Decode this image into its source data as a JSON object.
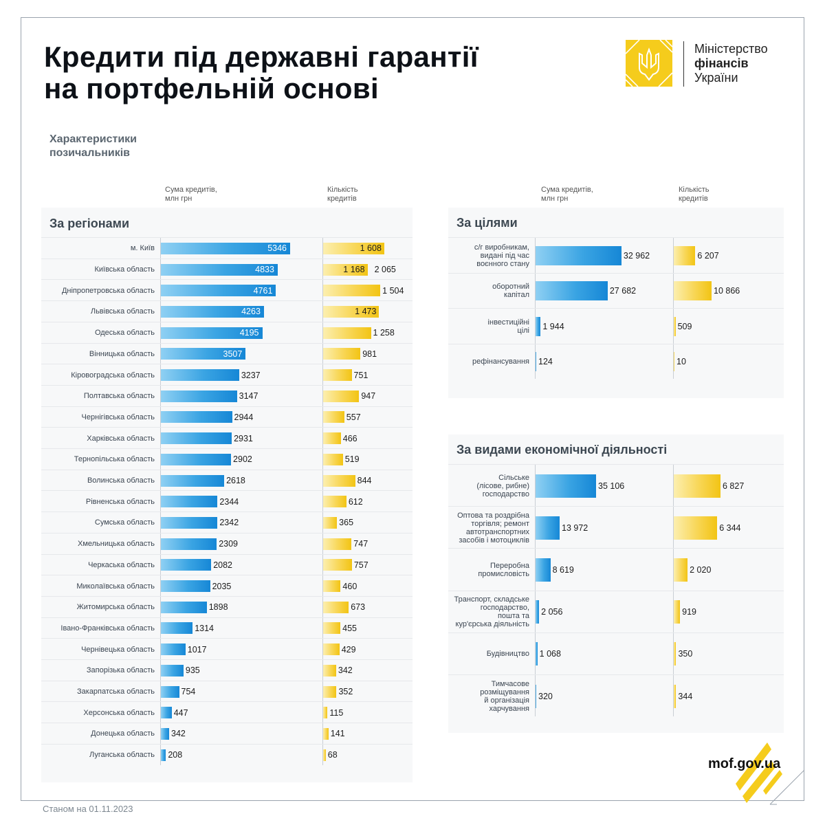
{
  "title": {
    "line1": "Кредити під державні гарантії",
    "line2": "на портфельній основі"
  },
  "org": {
    "line1": "Міністерство",
    "line2": "фінансів",
    "line3": "України"
  },
  "subtitle": {
    "line1": "Характеристики",
    "line2": "позичальників"
  },
  "headers": {
    "sum_line1": "Сума кредитів,",
    "sum_line2": "млн грн",
    "count_line1": "Кількість",
    "count_line2": "кредитів"
  },
  "footer": {
    "site": "mof.gov.ua",
    "date": "Станом на 01.11.2023"
  },
  "colors": {
    "blue": "#1687d6",
    "yellow": "#f2c414",
    "logo": "#f5cc1c"
  },
  "icons": {
    "logo": "trident-emblem-icon"
  },
  "chart_data": [
    {
      "type": "bar",
      "section": "За регіонами",
      "categories": [
        "м. Київ",
        "Київська область",
        "Дніпропетровська область",
        "Львівська область",
        "Одеська область",
        "Вінницька область",
        "Кіровоградська область",
        "Полтавська область",
        "Чернігівська область",
        "Харківська область",
        "Тернопільська область",
        "Волинська область",
        "Рівненська область",
        "Сумська область",
        "Хмельницька область",
        "Черкаська область",
        "Миколаївська область",
        "Житомирська область",
        "Івано-Франківська область",
        "Чернівецька область",
        "Запорізька область",
        "Закарпатська область",
        "Херсонська область",
        "Донецька область",
        "Луганська область"
      ],
      "series": [
        {
          "name": "Сума кредитів, млн грн",
          "values": [
            5346,
            4833,
            4761,
            4263,
            4195,
            3507,
            3237,
            3147,
            2944,
            2931,
            2902,
            2618,
            2344,
            2342,
            2309,
            2082,
            2035,
            1898,
            1314,
            1017,
            935,
            754,
            447,
            342,
            208
          ],
          "labels": [
            "5346",
            "4833",
            "4761",
            "4263",
            "4195",
            "3507",
            "3237",
            "3147",
            "2944",
            "2931",
            "2902",
            "2618",
            "2344",
            "2342",
            "2309",
            "2082",
            "2035",
            "1898",
            "1314",
            "1017",
            "935",
            "754",
            "447",
            "342",
            "208"
          ]
        },
        {
          "name": "Кількість кредитів",
          "values": [
            1608,
            1168,
            1504,
            1473,
            1258,
            981,
            751,
            947,
            557,
            466,
            519,
            844,
            612,
            365,
            747,
            757,
            460,
            673,
            455,
            429,
            342,
            352,
            115,
            141,
            68
          ],
          "labels": [
            "1 608",
            "1 168",
            "1 504",
            "1 473",
            "1 258",
            "981",
            "751",
            "947",
            "557",
            "466",
            "519",
            "844",
            "612",
            "365",
            "747",
            "757",
            "460",
            "673",
            "455",
            "429",
            "342",
            "352",
            "115",
            "141",
            "68"
          ]
        }
      ],
      "extra_label": {
        "row": 1,
        "text": "2 065"
      }
    },
    {
      "type": "bar",
      "section": "За цілями",
      "categories": [
        [
          "с/г виробникам,",
          "видані під час",
          "воєнного стану"
        ],
        [
          "оборотний",
          "капітал"
        ],
        [
          "інвестиційні",
          "цілі"
        ],
        [
          "рефінансування"
        ]
      ],
      "series": [
        {
          "name": "Сума кредитів, млн грн",
          "values": [
            32962,
            27682,
            1944,
            124
          ],
          "labels": [
            "32 962",
            "27 682",
            "1 944",
            "124"
          ]
        },
        {
          "name": "Кількість кредитів",
          "values": [
            6207,
            10866,
            509,
            10
          ],
          "labels": [
            "6 207",
            "10 866",
            "509",
            "10"
          ]
        }
      ]
    },
    {
      "type": "bar",
      "section": "За видами економічної діяльності",
      "categories": [
        [
          "Сільське",
          "(лісове, рибне)",
          "господарство"
        ],
        [
          "Оптова та роздрібна",
          "торгівля; ремонт",
          "автотранспортних",
          "засобів і мотоциклів"
        ],
        [
          "Переробна",
          "промисловість"
        ],
        [
          "Транспорт, складське",
          "господарство,",
          "пошта та",
          "кур'єрська діяльність"
        ],
        [
          "Будівництво"
        ],
        [
          "Тимчасове",
          "розміщування",
          "й організація",
          "харчування"
        ]
      ],
      "series": [
        {
          "name": "Сума кредитів, млн грн",
          "values": [
            35106,
            13972,
            8619,
            2056,
            1068,
            320
          ],
          "labels": [
            "35 106",
            "13 972",
            "8 619",
            "2 056",
            "1 068",
            "320"
          ]
        },
        {
          "name": "Кількість кредитів",
          "values": [
            6827,
            6344,
            2020,
            919,
            350,
            344
          ],
          "labels": [
            "6 827",
            "6 344",
            "2 020",
            "919",
            "350",
            "344"
          ]
        }
      ]
    }
  ]
}
